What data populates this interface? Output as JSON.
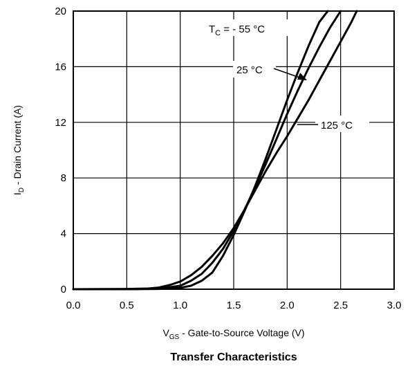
{
  "chart_data": {
    "type": "line",
    "title": "Transfer Characteristics",
    "xlabel": {
      "main": "V",
      "sub": "GS",
      "rest": " - Gate-to-Source Voltage (V)"
    },
    "ylabel": {
      "main": "I",
      "sub": "D",
      "rest": " - Drain Current (A)"
    },
    "xlim": [
      0,
      3
    ],
    "ylim": [
      0,
      20
    ],
    "x_ticks": [
      "0.0",
      "0.5",
      "1.0",
      "1.5",
      "2.0",
      "2.5",
      "3.0"
    ],
    "y_ticks": [
      "0",
      "4",
      "8",
      "12",
      "16",
      "20"
    ],
    "grid": true,
    "series": [
      {
        "name": "TC = - 55 °C",
        "x": [
          0,
          0.5,
          0.8,
          1.0,
          1.1,
          1.2,
          1.3,
          1.4,
          1.5,
          1.6,
          1.7,
          1.8,
          1.9,
          2.0,
          2.1,
          2.2,
          2.3,
          2.38
        ],
        "y": [
          0,
          0,
          0.02,
          0.1,
          0.25,
          0.6,
          1.2,
          2.4,
          3.9,
          5.6,
          7.4,
          9.4,
          11.5,
          13.6,
          15.6,
          17.5,
          19.2,
          20.0
        ]
      },
      {
        "name": "25 °C",
        "x": [
          0,
          0.5,
          0.8,
          1.0,
          1.1,
          1.2,
          1.3,
          1.4,
          1.5,
          1.6,
          1.7,
          1.8,
          1.9,
          2.0,
          2.1,
          2.2,
          2.3,
          2.4,
          2.5
        ],
        "y": [
          0,
          0,
          0.05,
          0.25,
          0.6,
          1.1,
          1.9,
          2.9,
          4.2,
          5.7,
          7.3,
          9.0,
          10.8,
          12.6,
          14.3,
          15.9,
          17.4,
          18.8,
          20.0
        ]
      },
      {
        "name": "125 °C",
        "x": [
          0,
          0.5,
          0.7,
          0.8,
          0.9,
          1.0,
          1.1,
          1.2,
          1.3,
          1.4,
          1.5,
          1.6,
          1.7,
          1.8,
          1.9,
          2.0,
          2.1,
          2.2,
          2.3,
          2.4,
          2.5,
          2.6,
          2.65
        ],
        "y": [
          0,
          0.02,
          0.05,
          0.12,
          0.3,
          0.55,
          1.0,
          1.6,
          2.4,
          3.3,
          4.4,
          5.7,
          7.1,
          8.5,
          9.8,
          11.0,
          12.3,
          13.6,
          15.0,
          16.4,
          17.8,
          19.2,
          20.0
        ]
      }
    ],
    "annotations": {
      "tc_main": "T",
      "tc_sub": "C",
      "tc_rest": " = - 55 °C",
      "t25": "25 °C",
      "t125": "125 °C"
    }
  }
}
